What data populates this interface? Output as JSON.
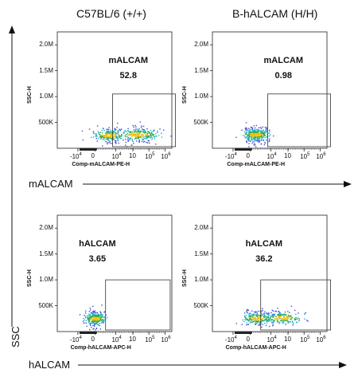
{
  "columns": [
    "C57BL/6 (+/+)",
    "B-hALCAM (H/H)"
  ],
  "row_labels": [
    "mALCAM",
    "hALCAM"
  ],
  "y_axis_main": "SSC",
  "chart_data": [
    {
      "type": "scatter",
      "column": "C57BL/6 (+/+)",
      "row": "mALCAM",
      "xlabel": "Comp-mALCAM-PE-H",
      "ylabel": "SSC-H",
      "gate_label": "mALCAM",
      "gate_value": "52.8",
      "y_ticks": [
        "500K",
        "1.0M",
        "1.5M",
        "2.0M"
      ],
      "x_ticks": [
        "-10",
        "0",
        "10",
        "10",
        "10",
        "10"
      ],
      "x_tick_exps": [
        "4",
        "",
        "4",
        "",
        "5",
        "6"
      ],
      "clusters": [
        {
          "x": 0.8,
          "y": 260000,
          "spread": 1.0,
          "n": 220
        },
        {
          "x": 2.4,
          "y": 270000,
          "spread": 1.3,
          "n": 260
        }
      ]
    },
    {
      "type": "scatter",
      "column": "B-hALCAM (H/H)",
      "row": "mALCAM",
      "xlabel": "Comp-mALCAM-PE-H",
      "ylabel": "SSC-H",
      "gate_label": "mALCAM",
      "gate_value": "0.98",
      "y_ticks": [
        "500K",
        "1.0M",
        "1.5M",
        "2.0M"
      ],
      "x_ticks": [
        "-10",
        "0",
        "10",
        "10",
        "10",
        "10"
      ],
      "x_tick_exps": [
        "4",
        "",
        "4",
        "",
        "5",
        "6"
      ],
      "clusters": [
        {
          "x": 0.3,
          "y": 270000,
          "spread": 0.8,
          "n": 340
        }
      ]
    },
    {
      "type": "scatter",
      "column": "C57BL/6 (+/+)",
      "row": "hALCAM",
      "xlabel": "Comp-hALCAM-APC-H",
      "ylabel": "SSC-H",
      "gate_label": "hALCAM",
      "gate_value": "3.65",
      "y_ticks": [
        "500K",
        "1.0M",
        "1.5M",
        "2.0M"
      ],
      "x_ticks": [
        "-10",
        "0",
        "10",
        "10",
        "10",
        "10"
      ],
      "x_tick_exps": [
        "4",
        "",
        "4",
        "",
        "5",
        "6"
      ],
      "clusters": [
        {
          "x": 0.0,
          "y": 260000,
          "spread": 0.6,
          "n": 300
        }
      ]
    },
    {
      "type": "scatter",
      "column": "B-hALCAM (H/H)",
      "row": "hALCAM",
      "xlabel": "Comp-hALCAM-APC-H",
      "ylabel": "SSC-H",
      "gate_label": "hALCAM",
      "gate_value": "36.2",
      "y_ticks": [
        "500K",
        "1.0M",
        "1.5M",
        "2.0M"
      ],
      "x_ticks": [
        "-10",
        "0",
        "10",
        "10",
        "10",
        "10"
      ],
      "x_tick_exps": [
        "4",
        "",
        "4",
        "",
        "5",
        "6"
      ],
      "clusters": [
        {
          "x": 0.4,
          "y": 260000,
          "spread": 0.9,
          "n": 230
        },
        {
          "x": 1.8,
          "y": 270000,
          "spread": 1.2,
          "n": 200
        }
      ]
    }
  ]
}
